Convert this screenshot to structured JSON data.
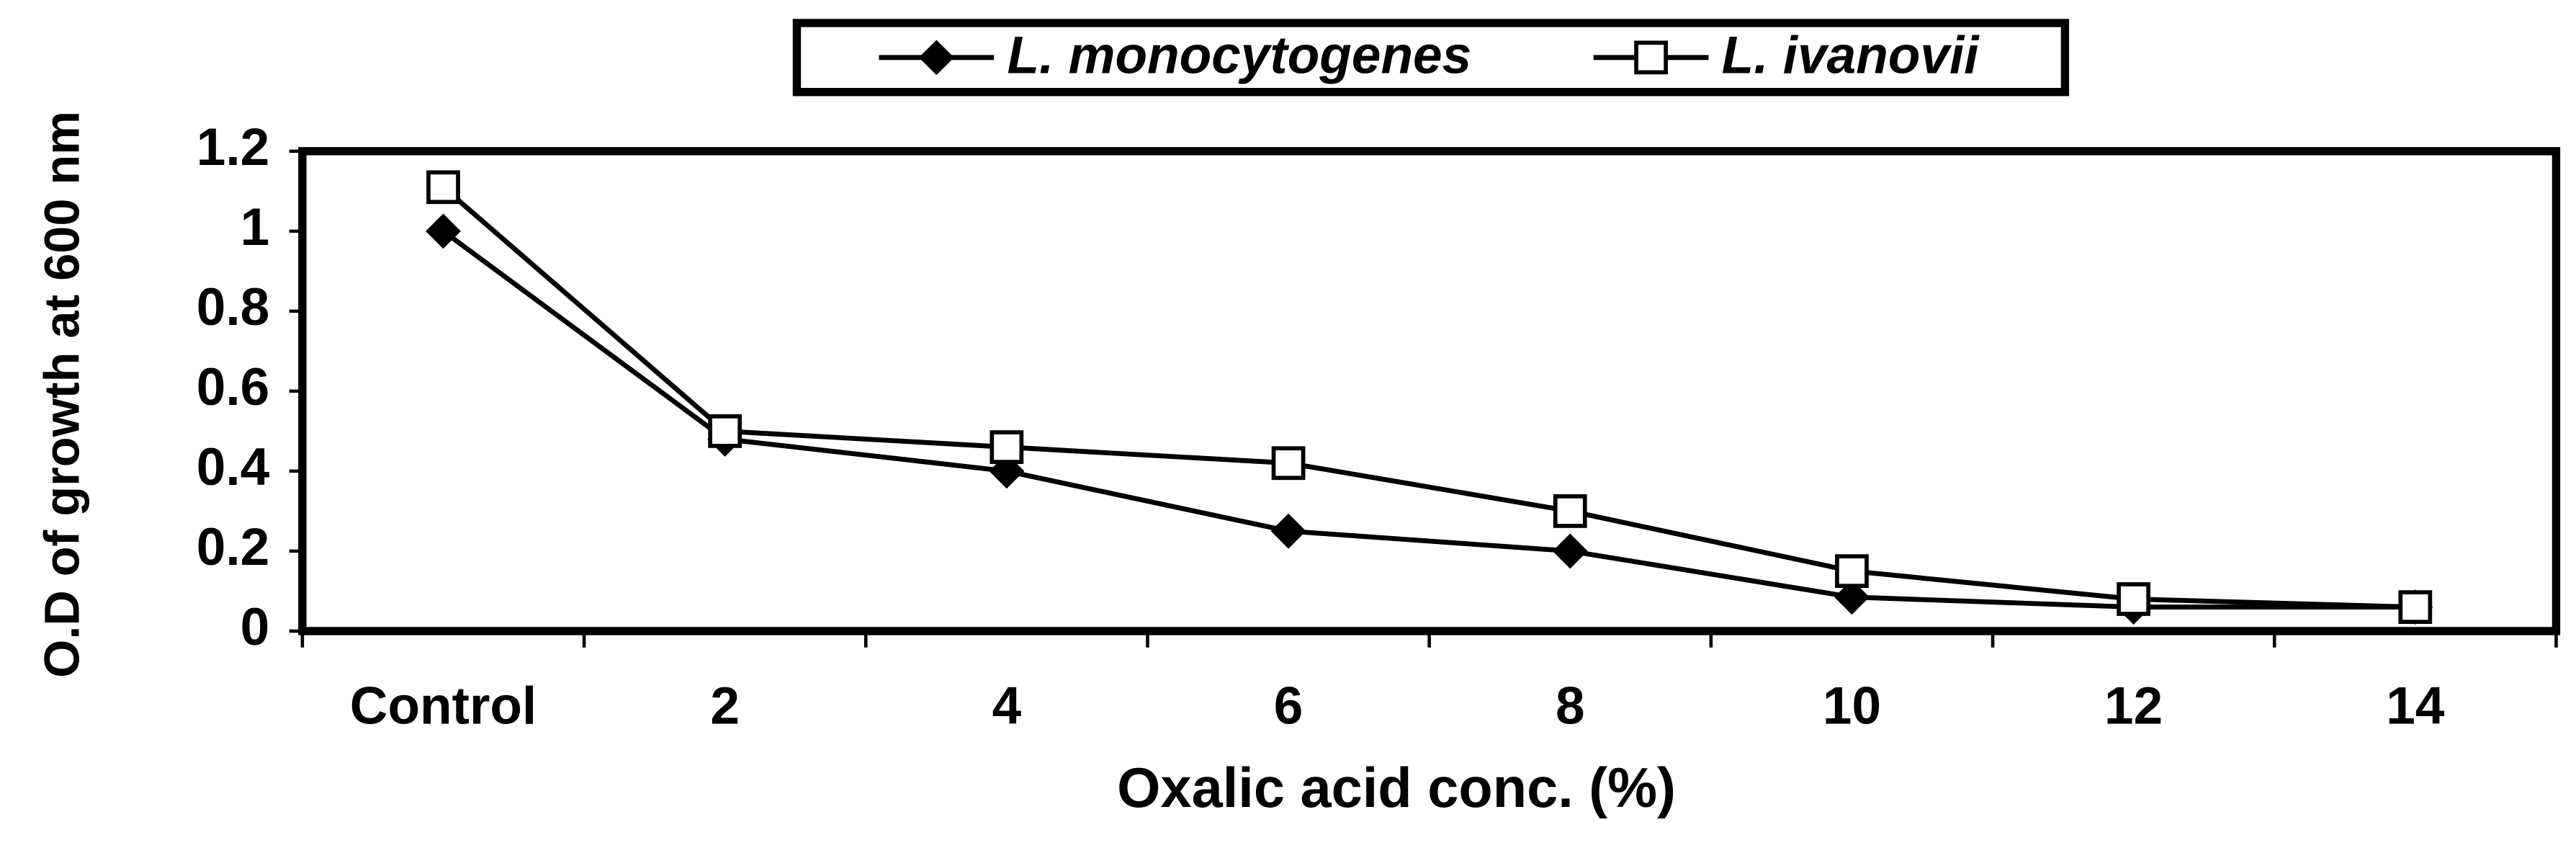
{
  "chart_data": {
    "type": "line",
    "x_label": "Oxalic acid conc. (%)",
    "y_label": "O.D of growth at 600 nm",
    "categories": [
      "Control",
      "2",
      "4",
      "6",
      "8",
      "10",
      "12",
      "14"
    ],
    "series": [
      {
        "name": "L. monocytogenes",
        "color": "#000000",
        "marker": "filled-diamond",
        "values": [
          1.0,
          0.48,
          0.4,
          0.25,
          0.2,
          0.085,
          0.06,
          0.06
        ]
      },
      {
        "name": "L. ivanovii",
        "color": "#000000",
        "marker": "open-square",
        "values": [
          1.11,
          0.5,
          0.46,
          0.42,
          0.3,
          0.15,
          0.08,
          0.06
        ]
      }
    ],
    "ylim": [
      0,
      1.2
    ],
    "yticks": [
      0,
      0.2,
      0.4,
      0.6,
      0.8,
      1,
      1.2
    ],
    "grid": false,
    "legend": "top"
  }
}
